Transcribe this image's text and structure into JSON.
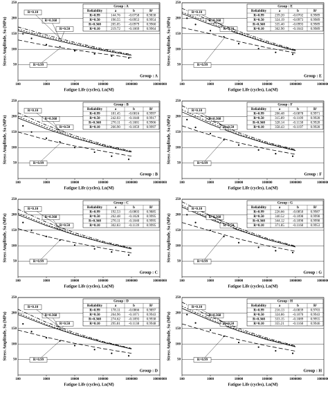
{
  "chart_data": [
    {
      "type": "line",
      "title": "Group : A",
      "xlabel": "Fatigue Life (cycles), Ln(Nf)",
      "ylabel": "Stress Amplitude, Sa (MPa)",
      "log_x": true,
      "grid": true,
      "xlim": [
        100,
        10000000
      ],
      "xticks": [
        100,
        1000,
        10000,
        100000,
        1000000,
        10000000
      ],
      "ylim": [
        0,
        250
      ],
      "yticks": [
        50,
        100,
        150,
        200,
        250
      ],
      "x": [
        100,
        1000,
        10000,
        100000,
        1000000
      ],
      "series": [
        {
          "name": "R=0.99",
          "color": "#000000",
          "dash": "6,3",
          "values": [
            130,
            112,
            98,
            85,
            73
          ]
        },
        {
          "name": "R=0.50",
          "color": "#000000",
          "dash": "none",
          "values": [
            160,
            136,
            115,
            96,
            80
          ]
        },
        {
          "name": "R=0.368",
          "color": "#000000",
          "dash": "2,2",
          "values": [
            165,
            140,
            118,
            98,
            81
          ]
        },
        {
          "name": "R=0.10",
          "color": "#000000",
          "dash": "5,2,1,2",
          "values": [
            172,
            146,
            122,
            101,
            83
          ]
        }
      ],
      "points": {
        "x": [
          150,
          300,
          1000,
          3000,
          10000,
          50000,
          200000,
          800000
        ],
        "y": [
          150,
          135,
          115,
          108,
          95,
          85,
          78,
          72
        ]
      },
      "table": {
        "columns": [
          "Reliability",
          "a",
          "b",
          "R²"
        ],
        "rows": [
          [
            "144.76",
            "-0.0758",
            "0.9838"
          ],
          [
            "196.55",
            "-0.0953",
            "0.9954"
          ],
          [
            "205.05",
            "-0.0979",
            "0.9960"
          ],
          [
            "219.72",
            "-0.1069",
            "0.9964"
          ]
        ]
      }
    },
    {
      "type": "line",
      "title": "Group : E",
      "xlabel": "Fatigue Life (cycles), Ln(Nf)",
      "ylabel": "Stress Amplitude, Sa (MPa)",
      "log_x": true,
      "grid": true,
      "xlim": [
        100,
        10000000
      ],
      "xticks": [
        100,
        1000,
        10000,
        100000,
        1000000,
        10000000
      ],
      "ylim": [
        0,
        250
      ],
      "yticks": [
        50,
        100,
        150,
        200,
        250
      ],
      "x": [
        100,
        1000,
        10000,
        100000,
        1000000
      ],
      "series": [
        {
          "name": "R=0.99",
          "color": "#000000",
          "dash": "6,3",
          "values": [
            170,
            150,
            125,
            105,
            88
          ]
        },
        {
          "name": "R=0.50",
          "color": "#000000",
          "dash": "none",
          "values": [
            215,
            180,
            150,
            120,
            95
          ]
        },
        {
          "name": "R=0.368",
          "color": "#000000",
          "dash": "2,2",
          "values": [
            220,
            185,
            152,
            122,
            96
          ]
        },
        {
          "name": "R=0.10",
          "color": "#000000",
          "dash": "5,2,1,2",
          "values": [
            232,
            192,
            158,
            126,
            98
          ]
        }
      ],
      "points": {
        "x": [
          150,
          300,
          1000,
          3000,
          10000,
          50000,
          200000,
          800000
        ],
        "y": [
          200,
          180,
          160,
          140,
          118,
          102,
          90,
          84
        ]
      },
      "table": {
        "columns": [
          "Reliability",
          "a",
          "b",
          "R²"
        ],
        "rows": [
          [
            "239.20",
            "-0.0702",
            "0.9989"
          ],
          [
            "324.19",
            "-0.0973",
            "0.9989"
          ],
          [
            "335.40",
            "-0.0993",
            "0.9989"
          ],
          [
            "362.90",
            "-0.1043",
            "0.9989"
          ]
        ]
      }
    },
    {
      "type": "line",
      "title": "Group : B",
      "xlabel": "Fatigue Life (cycles), Ln(Nf)",
      "ylabel": "Stress Amplitude, Sa (MPa)",
      "log_x": true,
      "grid": true,
      "xlim": [
        100,
        10000000
      ],
      "xticks": [
        100,
        1000,
        10000,
        100000,
        1000000,
        10000000
      ],
      "ylim": [
        0,
        250
      ],
      "yticks": [
        50,
        100,
        150,
        200,
        250
      ],
      "x": [
        100,
        1000,
        10000,
        100000,
        1000000
      ],
      "series": [
        {
          "name": "R=0.99",
          "color": "#000000",
          "dash": "6,3",
          "values": [
            150,
            125,
            105,
            88,
            72
          ]
        },
        {
          "name": "R=0.50",
          "color": "#000000",
          "dash": "none",
          "values": [
            195,
            160,
            130,
            105,
            85
          ]
        },
        {
          "name": "R=0.368",
          "color": "#000000",
          "dash": "2,2",
          "values": [
            200,
            165,
            133,
            107,
            86
          ]
        },
        {
          "name": "R=0.10",
          "color": "#000000",
          "dash": "5,2,1,2",
          "values": [
            212,
            172,
            138,
            110,
            88
          ]
        }
      ],
      "points": {
        "x": [
          150,
          300,
          1000,
          3000,
          10000,
          50000,
          200000,
          800000
        ],
        "y": [
          170,
          150,
          130,
          118,
          100,
          85,
          72,
          62
        ]
      },
      "table": {
        "columns": [
          "Reliability",
          "a",
          "b",
          "R²"
        ],
        "rows": [
          [
            "181.45",
            "-0.0816",
            "0.9997"
          ],
          [
            "242.03",
            "-0.1040",
            "0.9917"
          ],
          [
            "270.11",
            "-0.1081",
            "0.9906"
          ],
          [
            "266.90",
            "-0.1059",
            "0.9997"
          ]
        ]
      }
    },
    {
      "type": "line",
      "title": "Group : F",
      "xlabel": "Fatigue Life (cycles), Ln(Nf)",
      "ylabel": "Stress Amplitude, Sa (MPa)",
      "log_x": true,
      "grid": true,
      "xlim": [
        100,
        10000000
      ],
      "xticks": [
        100,
        1000,
        10000,
        100000,
        1000000,
        10000000
      ],
      "ylim": [
        0,
        250
      ],
      "yticks": [
        50,
        100,
        150,
        200,
        250
      ],
      "x": [
        100,
        1000,
        10000,
        100000,
        1000000
      ],
      "series": [
        {
          "name": "R=0.99",
          "color": "#000000",
          "dash": "6,3",
          "values": [
            170,
            140,
            115,
            95,
            78
          ]
        },
        {
          "name": "R=0.50",
          "color": "#000000",
          "dash": "none",
          "values": [
            215,
            175,
            140,
            112,
            90
          ]
        },
        {
          "name": "R=0.368",
          "color": "#000000",
          "dash": "2,2",
          "values": [
            222,
            180,
            143,
            114,
            91
          ]
        },
        {
          "name": "R=0.10",
          "color": "#000000",
          "dash": "5,2,1,2",
          "values": [
            235,
            188,
            148,
            117,
            93
          ]
        }
      ],
      "points": {
        "x": [
          150,
          300,
          1000,
          3000,
          10000,
          50000,
          200000,
          800000
        ],
        "y": [
          190,
          165,
          145,
          125,
          108,
          92,
          80,
          72
        ]
      },
      "table": {
        "columns": [
          "Reliability",
          "a",
          "b",
          "R²"
        ],
        "rows": [
          [
            "206.48",
            "-0.0878",
            "0.9971"
          ],
          [
            "315.89",
            "-0.1109",
            "0.9928"
          ],
          [
            "328.14",
            "-0.1138",
            "0.9928"
          ],
          [
            "358.43",
            "-0.1197",
            "0.9928"
          ]
        ]
      }
    },
    {
      "type": "line",
      "title": "Group : C",
      "xlabel": "Fatigue Life (cycles), Ln(Nf)",
      "ylabel": "Stress Amplitude, Sa (MPa)",
      "log_x": true,
      "grid": true,
      "xlim": [
        100,
        10000000
      ],
      "xticks": [
        100,
        1000,
        10000,
        100000,
        1000000,
        10000000
      ],
      "ylim": [
        0,
        250
      ],
      "yticks": [
        50,
        100,
        150,
        200,
        250
      ],
      "x": [
        100,
        1000,
        10000,
        100000,
        1000000
      ],
      "series": [
        {
          "name": "R=0.99",
          "color": "#000000",
          "dash": "6,3",
          "values": [
            155,
            130,
            110,
            92,
            77
          ]
        },
        {
          "name": "R=0.50",
          "color": "#000000",
          "dash": "none",
          "values": [
            200,
            165,
            135,
            110,
            90
          ]
        },
        {
          "name": "R=0.368",
          "color": "#000000",
          "dash": "2,2",
          "values": [
            205,
            168,
            137,
            111,
            91
          ]
        },
        {
          "name": "R=0.10",
          "color": "#000000",
          "dash": "5,2,1,2",
          "values": [
            218,
            176,
            142,
            114,
            93
          ]
        }
      ],
      "points": {
        "x": [
          150,
          300,
          1000,
          3000,
          10000,
          50000,
          200000,
          800000
        ],
        "y": [
          175,
          150,
          130,
          118,
          102,
          90,
          80,
          70
        ]
      },
      "table": {
        "columns": [
          "Reliability",
          "a",
          "b",
          "R²"
        ],
        "rows": [
          [
            "192.53",
            "-0.0803",
            "0.9885"
          ],
          [
            "262.48",
            "-0.1028",
            "0.9995"
          ],
          [
            "270.11",
            "-0.1040",
            "0.9995"
          ],
          [
            "302.83",
            "-0.1139",
            "0.9995"
          ]
        ]
      }
    },
    {
      "type": "line",
      "title": "Group : G",
      "xlabel": "Fatigue Life (cycles), Ln(Nf)",
      "ylabel": "Stress Amplitude, Sa (MPa)",
      "log_x": true,
      "grid": true,
      "xlim": [
        100,
        10000000
      ],
      "xticks": [
        100,
        1000,
        10000,
        100000,
        1000000,
        10000000
      ],
      "ylim": [
        0,
        250
      ],
      "yticks": [
        50,
        100,
        150,
        200,
        250
      ],
      "x": [
        100,
        1000,
        10000,
        100000,
        1000000
      ],
      "series": [
        {
          "name": "R=0.99",
          "color": "#000000",
          "dash": "6,3",
          "values": [
            175,
            148,
            122,
            100,
            82
          ]
        },
        {
          "name": "R=0.50",
          "color": "#000000",
          "dash": "none",
          "values": [
            225,
            185,
            150,
            120,
            96
          ]
        },
        {
          "name": "R=0.368",
          "color": "#000000",
          "dash": "2,2",
          "values": [
            230,
            188,
            152,
            121,
            97
          ]
        },
        {
          "name": "R=0.10",
          "color": "#000000",
          "dash": "5,2,1,2",
          "values": [
            242,
            196,
            157,
            124,
            99
          ]
        }
      ],
      "points": {
        "x": [
          150,
          300,
          1000,
          3000,
          10000,
          50000,
          200000,
          800000
        ],
        "y": [
          200,
          175,
          150,
          130,
          110,
          95,
          84,
          78
        ]
      },
      "table": {
        "columns": [
          "Reliability",
          "a",
          "b",
          "R²"
        ],
        "rows": [
          [
            "226.66",
            "-0.0850",
            "0.9987"
          ],
          [
            "340.52",
            "-0.1098",
            "0.9998"
          ],
          [
            "344.12",
            "-0.1098",
            "0.9998"
          ],
          [
            "371.85",
            "-0.1168",
            "0.9953"
          ]
        ]
      }
    },
    {
      "type": "line",
      "title": "Group : D",
      "xlabel": "Fatigue Life (cycles), Ln(Nf)",
      "ylabel": "Stress Amplitude, Sa (MPa)",
      "log_x": true,
      "grid": true,
      "xlim": [
        100,
        10000000
      ],
      "xticks": [
        100,
        1000,
        10000,
        100000,
        1000000,
        10000000
      ],
      "ylim": [
        0,
        250
      ],
      "yticks": [
        50,
        100,
        150,
        200,
        250
      ],
      "x": [
        100,
        1000,
        10000,
        100000,
        1000000
      ],
      "series": [
        {
          "name": "R=0.99",
          "color": "#000000",
          "dash": "6,3",
          "values": [
            145,
            122,
            102,
            85,
            70
          ]
        },
        {
          "name": "R=0.50",
          "color": "#000000",
          "dash": "none",
          "values": [
            195,
            160,
            130,
            105,
            84
          ]
        },
        {
          "name": "R=0.368",
          "color": "#000000",
          "dash": "2,2",
          "values": [
            200,
            163,
            132,
            106,
            85
          ]
        },
        {
          "name": "R=0.10",
          "color": "#000000",
          "dash": "5,2,1,2",
          "values": [
            212,
            170,
            136,
            108,
            86
          ]
        }
      ],
      "points": {
        "x": [
          150,
          300,
          1000,
          3000,
          10000,
          50000,
          200000,
          800000
        ],
        "y": [
          165,
          140,
          120,
          110,
          95,
          82,
          70,
          62
        ]
      },
      "table": {
        "columns": [
          "Reliability",
          "a",
          "b",
          "R²"
        ],
        "rows": [
          [
            "178.11",
            "-0.0866",
            "0.9897"
          ],
          [
            "264.96",
            "-0.1071",
            "0.9943"
          ],
          [
            "274.62",
            "-0.1093",
            "0.9938"
          ],
          [
            "295.81",
            "-0.1138",
            "0.9948"
          ]
        ]
      }
    },
    {
      "type": "line",
      "title": "Group : H",
      "xlabel": "Fatigue Life (cycles), Ln(Nf)",
      "ylabel": "Stress Amplitude, Sa (MPa)",
      "log_x": true,
      "grid": true,
      "xlim": [
        100,
        10000000
      ],
      "xticks": [
        100,
        1000,
        10000,
        100000,
        1000000,
        10000000
      ],
      "ylim": [
        0,
        250
      ],
      "yticks": [
        50,
        100,
        150,
        200,
        250
      ],
      "x": [
        100,
        1000,
        10000,
        100000,
        1000000
      ],
      "series": [
        {
          "name": "R=0.99",
          "color": "#000000",
          "dash": "6,3",
          "values": [
            165,
            138,
            114,
            94,
            77
          ]
        },
        {
          "name": "R=0.50",
          "color": "#000000",
          "dash": "none",
          "values": [
            215,
            176,
            142,
            114,
            91
          ]
        },
        {
          "name": "R=0.368",
          "color": "#000000",
          "dash": "2,2",
          "values": [
            222,
            180,
            145,
            116,
            92
          ]
        },
        {
          "name": "R=0.10",
          "color": "#000000",
          "dash": "5,2,1,2",
          "values": [
            235,
            188,
            150,
            119,
            94
          ]
        }
      ],
      "points": {
        "x": [
          150,
          300,
          1000,
          3000,
          10000,
          50000,
          200000,
          800000
        ],
        "y": [
          195,
          168,
          145,
          125,
          105,
          90,
          78,
          70
        ]
      },
      "table": {
        "columns": [
          "Reliability",
          "a",
          "b",
          "R²"
        ],
        "rows": [
          [
            "216.13",
            "-0.0839",
            "0.9703"
          ],
          [
            "324.86",
            "-0.1070",
            "0.9943"
          ],
          [
            "333.15",
            "-0.1089",
            "0.9955"
          ],
          [
            "355.21",
            "-0.1168",
            "0.9946"
          ]
        ]
      }
    }
  ]
}
